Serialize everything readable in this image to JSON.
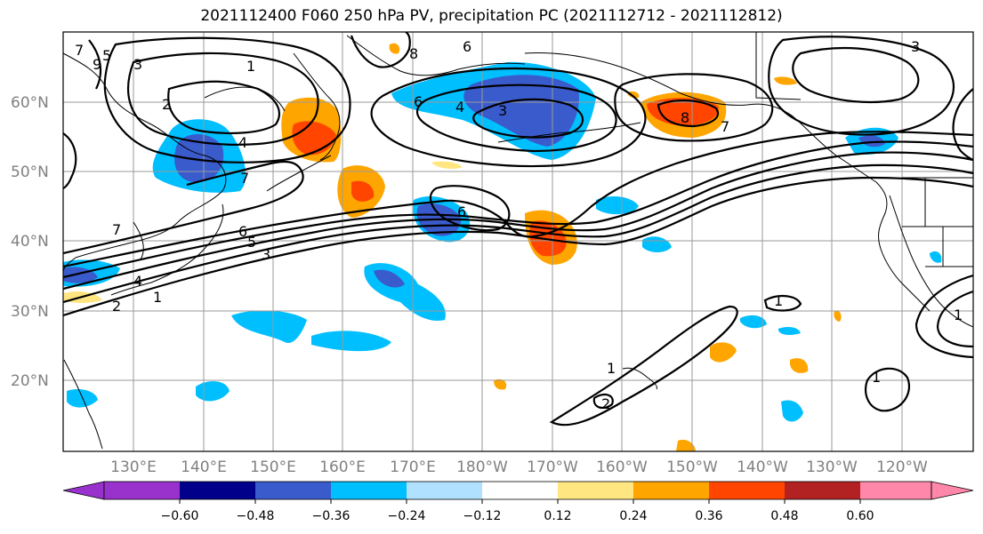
{
  "title": "2021112400 F060 250 hPa PV, precipitation PC (2021112712 - 2021112812)",
  "lat_labels": [
    "60°N",
    "50°N",
    "40°N",
    "30°N",
    "20°N"
  ],
  "lon_labels": [
    "130°E",
    "140°E",
    "150°E",
    "160°E",
    "170°E",
    "180°W",
    "170°W",
    "160°W",
    "150°W",
    "140°W",
    "130°W",
    "120°W"
  ],
  "colorbar": {
    "ticks": [
      "−0.60",
      "−0.48",
      "−0.36",
      "−0.24",
      "−0.12",
      "0.12",
      "0.24",
      "0.36",
      "0.48",
      "0.60"
    ],
    "colors": [
      "#9932cc",
      "#00008b",
      "#3a5bcc",
      "#00bfff",
      "#b0e2ff",
      "#ffffff",
      "#ffe680",
      "#ffa500",
      "#ff4500",
      "#b22222",
      "#ff88aa"
    ]
  },
  "contour_labels": [
    "1",
    "2",
    "3",
    "4",
    "5",
    "6",
    "7",
    "8",
    "9",
    "6",
    "4",
    "3",
    "8",
    "7",
    "6",
    "7",
    "6",
    "5",
    "3",
    "4",
    "7",
    "2",
    "1",
    "1",
    "1",
    "2",
    "1",
    "1",
    "3"
  ]
}
